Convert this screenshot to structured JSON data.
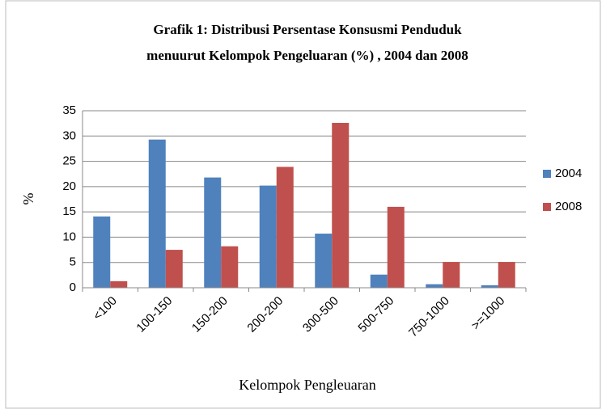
{
  "chart_data": {
    "type": "bar",
    "title": [
      "Grafik 1: Distribusi Persentase Konsusmi Penduduk",
      "menuurut Kelompok Pengeluaran (%) , 2004 dan 2008"
    ],
    "x_label": "Kelompok Pengleuaran",
    "y_label": "%",
    "categories": [
      "<100",
      "100-150",
      "150-200",
      "200-200",
      "300-500",
      "500-750",
      "750-1000",
      ">=1000"
    ],
    "series": [
      {
        "name": "2004",
        "color": "#4f81bd",
        "values": [
          14.1,
          29.3,
          21.8,
          20.2,
          10.7,
          2.6,
          0.7,
          0.5
        ]
      },
      {
        "name": "2008",
        "color": "#c0504d",
        "values": [
          1.3,
          7.5,
          8.2,
          23.9,
          32.6,
          16.0,
          5.1,
          5.1
        ]
      }
    ],
    "ylim": [
      0,
      35
    ],
    "yticks": [
      0,
      5,
      10,
      15,
      20,
      25,
      30,
      35
    ],
    "grid": true,
    "legend": "right"
  }
}
